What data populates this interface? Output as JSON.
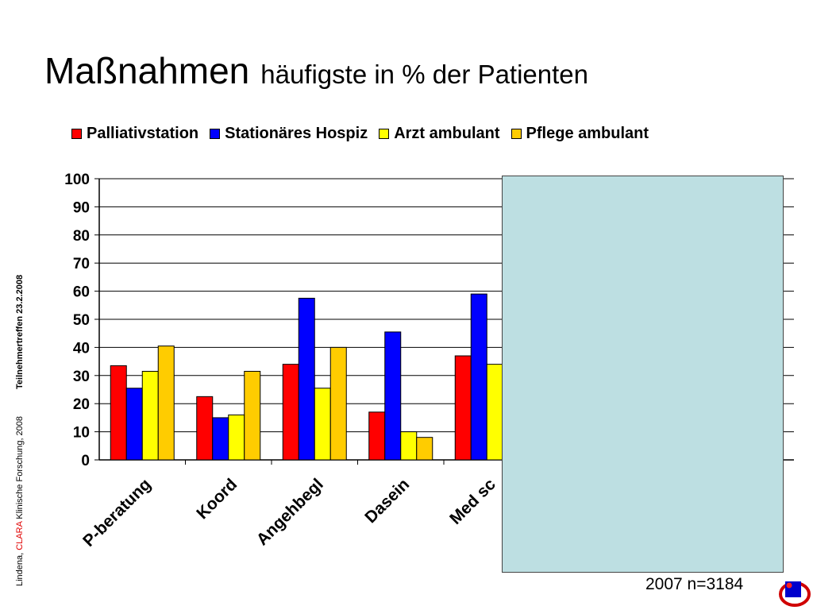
{
  "title": {
    "main": "Maßnahmen",
    "sub": "häufigste in  % der Patienten"
  },
  "side_caption": {
    "author": "Lindena, ",
    "brand": "CLARA",
    "rest": " Klinische Forschung, 2008",
    "event": "Teilnehmertreffen 23.2.2008"
  },
  "footnote": "2007 n=3184",
  "colors": {
    "Palliativstation": "#ff0000",
    "Stationäres Hospiz": "#0000ff",
    "Arzt ambulant": "#ffff00",
    "Pflege ambulant": "#ffcc00",
    "overlay": "#bddfe2"
  },
  "chart_data": {
    "type": "bar",
    "categories": [
      "P-beratung",
      "Koord",
      "Angehbegl",
      "Dasein",
      "Med sc"
    ],
    "series": [
      {
        "name": "Palliativstation",
        "values": [
          33.5,
          22.5,
          34,
          17,
          37
        ]
      },
      {
        "name": "Stationäres Hospiz",
        "values": [
          25.5,
          15,
          57.5,
          45.5,
          59
        ]
      },
      {
        "name": "Arzt ambulant",
        "values": [
          31.5,
          16,
          25.5,
          10,
          34
        ]
      },
      {
        "name": "Pflege ambulant",
        "values": [
          40.5,
          31.5,
          40,
          8,
          null
        ]
      }
    ],
    "ylim": [
      0,
      100
    ],
    "yticks": [
      "0",
      "10",
      "20",
      "30",
      "40",
      "50",
      "60",
      "70",
      "80",
      "90",
      "100"
    ],
    "grid": true,
    "legend_position": "top"
  }
}
